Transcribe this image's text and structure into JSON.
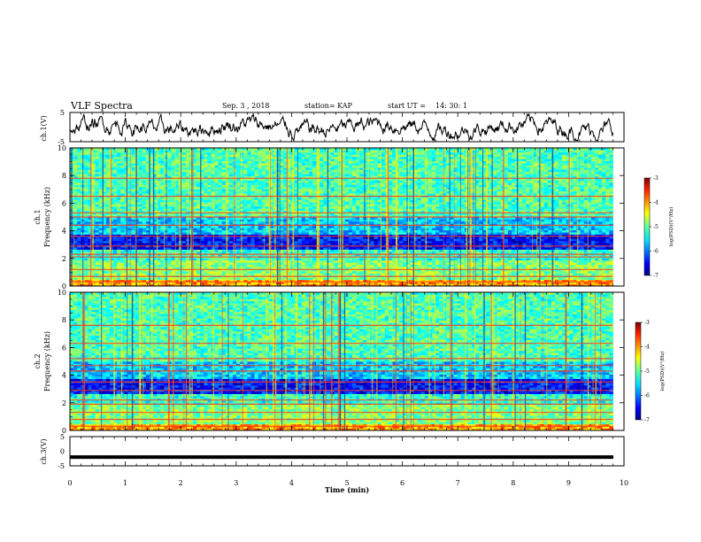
{
  "header": {
    "title": "VLF Spectra",
    "date": "Sep. 3 , 2018",
    "station": "station= KAP",
    "start_label": "start UT = ",
    "start_time": "14: 30: 1"
  },
  "chart_data": [
    {
      "type": "line",
      "panel": "ch1-waveform",
      "ylabel": "ch.1(V)",
      "ylim": [
        -5,
        5
      ],
      "yticks": [
        "5",
        "-5"
      ],
      "xlim": [
        0,
        10
      ],
      "series_color": "#000000"
    },
    {
      "type": "heatmap",
      "panel": "ch1-spectrogram",
      "ylabel": "ch.1\nFrequency (kHz)",
      "ylabel_line1": "ch.1",
      "ylabel_line2": "Frequency (kHz)",
      "ylim": [
        0,
        10
      ],
      "yticks": [
        "0",
        "2",
        "4",
        "6",
        "8",
        "10"
      ],
      "xlim": [
        0,
        10
      ],
      "colorbar": {
        "label": "log(PSD)(V²/Hz)",
        "range": [
          -7,
          -3
        ],
        "ticks": [
          "-3",
          "-4",
          "-5",
          "-6",
          "-7"
        ],
        "colormap": "jet"
      },
      "lines_khz": [
        0.3,
        0.7,
        1.2,
        2.1,
        2.3,
        2.9,
        3.6,
        4.4,
        5.0,
        5.3,
        6.5,
        7.8
      ]
    },
    {
      "type": "heatmap",
      "panel": "ch2-spectrogram",
      "ylabel_line1": "ch.2",
      "ylabel_line2": "Frequency (kHz)",
      "ylim": [
        0,
        10
      ],
      "yticks": [
        "0",
        "2",
        "4",
        "6",
        "8",
        "10"
      ],
      "xlim": [
        0,
        10
      ],
      "colorbar": {
        "label": "log(PSD)(V²/Hz)",
        "range": [
          -7,
          -3
        ],
        "ticks": [
          "-3",
          "-4",
          "-5",
          "-6",
          "-7"
        ],
        "colormap": "jet"
      },
      "lines_khz": [
        0.3,
        0.8,
        1.3,
        1.9,
        2.2,
        2.9,
        3.5,
        4.3,
        4.7,
        5.2,
        6.3,
        7.6
      ]
    },
    {
      "type": "line",
      "panel": "ch3-waveform",
      "ylabel": "ch.3(V)",
      "ylim": [
        -5,
        5
      ],
      "yticks": [
        "5",
        "0",
        "-5"
      ],
      "xlim": [
        0,
        10
      ],
      "values_constant": -2
    }
  ],
  "xaxis": {
    "label": "Time (min)",
    "ticks": [
      "0",
      "1",
      "2",
      "3",
      "4",
      "5",
      "6",
      "7",
      "8",
      "9",
      "10"
    ],
    "data_end_min": 9.8
  }
}
